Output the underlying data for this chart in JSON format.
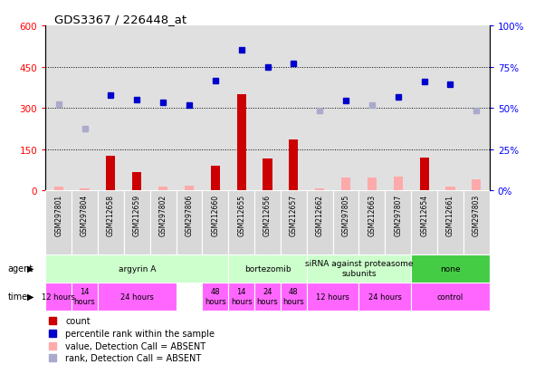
{
  "title": "GDS3367 / 226448_at",
  "samples": [
    "GSM297801",
    "GSM297804",
    "GSM212658",
    "GSM212659",
    "GSM297802",
    "GSM297806",
    "GSM212660",
    "GSM212655",
    "GSM212656",
    "GSM212657",
    "GSM212662",
    "GSM297805",
    "GSM212663",
    "GSM297807",
    "GSM212654",
    "GSM212661",
    "GSM297803"
  ],
  "count_values": [
    15,
    8,
    125,
    65,
    12,
    18,
    90,
    350,
    115,
    185,
    8,
    45,
    45,
    50,
    120,
    15,
    40
  ],
  "count_absent": [
    true,
    true,
    false,
    false,
    true,
    true,
    false,
    false,
    false,
    false,
    true,
    true,
    true,
    true,
    false,
    true,
    true
  ],
  "rank_values": [
    315,
    225,
    345,
    330,
    320,
    310,
    400,
    510,
    450,
    460,
    290,
    325,
    310,
    340,
    395,
    385,
    290
  ],
  "rank_absent": [
    true,
    true,
    false,
    false,
    false,
    false,
    false,
    false,
    false,
    false,
    true,
    false,
    true,
    false,
    false,
    false,
    true
  ],
  "yticks_left": [
    0,
    150,
    300,
    450,
    600
  ],
  "ytick_labels_left": [
    "0",
    "150",
    "300",
    "450",
    "600"
  ],
  "ytick_labels_right": [
    "0%",
    "25%",
    "50%",
    "75%",
    "100%"
  ],
  "agent_groups": [
    {
      "label": "argyrin A",
      "start": 0,
      "end": 7,
      "color": "#ccffcc"
    },
    {
      "label": "bortezomib",
      "start": 7,
      "end": 10,
      "color": "#ccffcc"
    },
    {
      "label": "siRNA against proteasome\nsubunits",
      "start": 10,
      "end": 14,
      "color": "#ccffcc"
    },
    {
      "label": "none",
      "start": 14,
      "end": 17,
      "color": "#44cc44"
    }
  ],
  "time_groups": [
    {
      "label": "12 hours",
      "start": 0,
      "end": 1,
      "color": "#ff66ff"
    },
    {
      "label": "14\nhours",
      "start": 1,
      "end": 2,
      "color": "#ff66ff"
    },
    {
      "label": "24 hours",
      "start": 2,
      "end": 5,
      "color": "#ff66ff"
    },
    {
      "label": "48\nhours",
      "start": 6,
      "end": 7,
      "color": "#ff66ff"
    },
    {
      "label": "14\nhours",
      "start": 7,
      "end": 8,
      "color": "#ff66ff"
    },
    {
      "label": "24\nhours",
      "start": 8,
      "end": 9,
      "color": "#ff66ff"
    },
    {
      "label": "48\nhours",
      "start": 9,
      "end": 10,
      "color": "#ff66ff"
    },
    {
      "label": "12 hours",
      "start": 10,
      "end": 12,
      "color": "#ff66ff"
    },
    {
      "label": "24 hours",
      "start": 12,
      "end": 14,
      "color": "#ff66ff"
    },
    {
      "label": "control",
      "start": 14,
      "end": 17,
      "color": "#ff66ff"
    }
  ],
  "color_count_present": "#cc0000",
  "color_count_absent": "#ffaaaa",
  "color_rank_present": "#0000cc",
  "color_rank_absent": "#aaaacc"
}
